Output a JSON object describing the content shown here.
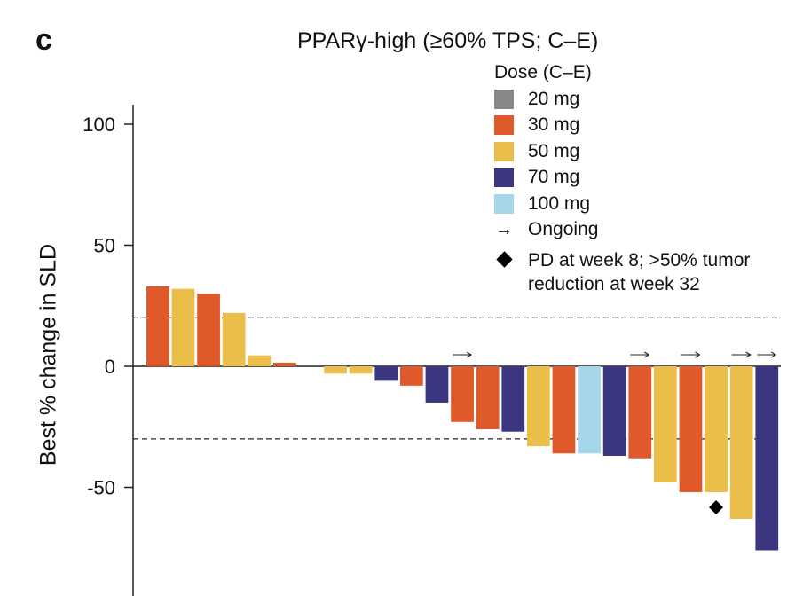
{
  "panel_letter": "c",
  "chart_data": {
    "type": "bar",
    "title": "PPARγ-high (≥60% TPS; C–E)",
    "ylabel": "Best % change in SLD",
    "xlabel": "",
    "ylim": [
      -88,
      107
    ],
    "yticks": [
      100,
      50,
      0,
      -50
    ],
    "ytick_labels": [
      "100",
      "50",
      "0",
      "-50"
    ],
    "reference_lines": [
      20,
      -30
    ],
    "legend": {
      "title": "Dose (C–E)",
      "entries": [
        {
          "label": "20 mg",
          "color": "#888888"
        },
        {
          "label": "30 mg",
          "color": "#e0592a"
        },
        {
          "label": "50 mg",
          "color": "#ebbe4a"
        },
        {
          "label": "70 mg",
          "color": "#3a3680"
        },
        {
          "label": "100 mg",
          "color": "#a6d6ea"
        }
      ],
      "ongoing_label": "Ongoing",
      "diamond_label_line1": "PD at week 8; >50% tumor",
      "diamond_label_line2": "reduction at week 32",
      "placement": "top-right"
    },
    "bars": [
      {
        "value": 33,
        "dose": "30 mg"
      },
      {
        "value": 32,
        "dose": "50 mg"
      },
      {
        "value": 30,
        "dose": "30 mg"
      },
      {
        "value": 22,
        "dose": "50 mg"
      },
      {
        "value": 4.5,
        "dose": "50 mg"
      },
      {
        "value": 1.5,
        "dose": "30 mg"
      },
      {
        "value": 0,
        "dose": "50 mg"
      },
      {
        "value": -3,
        "dose": "50 mg"
      },
      {
        "value": -3,
        "dose": "50 mg"
      },
      {
        "value": -6,
        "dose": "70 mg"
      },
      {
        "value": -8,
        "dose": "30 mg"
      },
      {
        "value": -15,
        "dose": "70 mg"
      },
      {
        "value": -23,
        "dose": "30 mg",
        "ongoing": true
      },
      {
        "value": -26,
        "dose": "30 mg"
      },
      {
        "value": -27,
        "dose": "70 mg"
      },
      {
        "value": -33,
        "dose": "50 mg"
      },
      {
        "value": -36,
        "dose": "30 mg"
      },
      {
        "value": -36,
        "dose": "100 mg"
      },
      {
        "value": -37,
        "dose": "70 mg"
      },
      {
        "value": -38,
        "dose": "30 mg",
        "ongoing": true
      },
      {
        "value": -48,
        "dose": "50 mg"
      },
      {
        "value": -52,
        "dose": "30 mg",
        "ongoing": true
      },
      {
        "value": -52,
        "dose": "50 mg",
        "diamond": true
      },
      {
        "value": -63,
        "dose": "50 mg",
        "ongoing": true
      },
      {
        "value": -76,
        "dose": "70 mg",
        "ongoing": true
      }
    ]
  }
}
